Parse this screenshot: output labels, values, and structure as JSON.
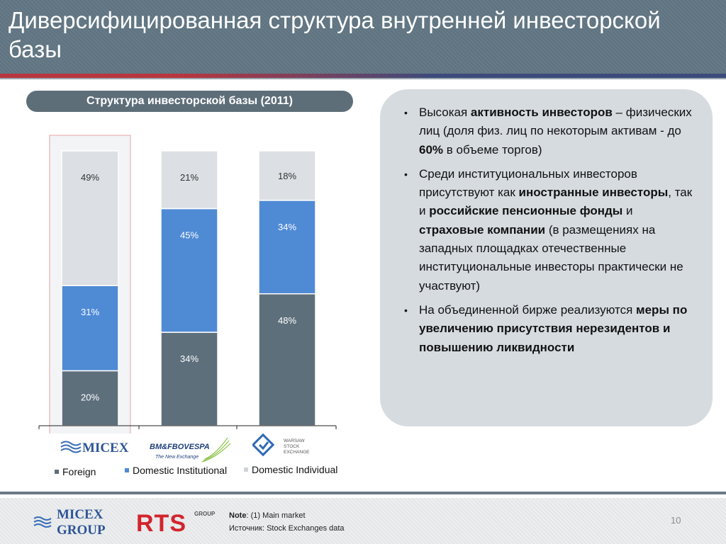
{
  "header": {
    "title": "Диверсифицированная структура внутренней инвесторской базы"
  },
  "chart_title": "Структура инвесторской базы (2011)",
  "chart_data": {
    "type": "bar",
    "stacked": true,
    "percent": true,
    "categories": [
      "MICEX",
      "BM&FBOVESPA",
      "Warsaw Stock Exchange"
    ],
    "series": [
      {
        "name": "Foreign",
        "values": [
          20,
          34,
          48
        ],
        "color": "#5e6f7c",
        "labels": [
          "20%",
          "34%",
          "48%"
        ]
      },
      {
        "name": "Domestic Institutional",
        "values": [
          31,
          45,
          34
        ],
        "color": "#4f8ad4",
        "labels": [
          "31%",
          "45%",
          "34%"
        ]
      },
      {
        "name": "Domestic Individual",
        "values": [
          49,
          21,
          18
        ],
        "color": "#dcdfe3",
        "labels": [
          "49%",
          "21%",
          "18%"
        ]
      }
    ],
    "ylim": [
      0,
      100
    ],
    "highlighted_category": "MICEX",
    "legend_position": "bottom"
  },
  "logos": {
    "micex": "MICEX",
    "bmf_name": "BM&FBOVESPA",
    "bmf_tagline": "The New Exchange",
    "wse_line1": "WARSAW",
    "wse_line2": "STOCK",
    "wse_line3": "EXCHANGE"
  },
  "legend": {
    "foreign": "Foreign",
    "domestic_institutional": "Domestic Institutional",
    "domestic_individual": "Domestic Individual"
  },
  "bullets": {
    "b1": {
      "t1": "Высокая ",
      "t2": "активность инвесторов",
      "t3": " – физических лиц (доля физ. лиц по некоторым активам - до ",
      "t4": "60%",
      "t5": " в объеме торгов)"
    },
    "b2": {
      "t1": "Среди институциональных инвесторов присутствуют как ",
      "t2": "иностранные инвесторы",
      "t3": ", так и ",
      "t4": "российские пенсионные фонды",
      "t5": " и ",
      "t6": "страховые компании",
      "t7": " (в размещениях на западных площадках отечественные институциональные инвесторы практически не участвуют)"
    },
    "b3": {
      "t1": "На объединенной бирже реализуются ",
      "t2": "меры по увеличению присутствия нерезидентов и повышению ликвидности"
    }
  },
  "footer": {
    "micex_group_line1": "MICEX",
    "micex_group_line2": "GROUP",
    "rts": "RTS",
    "rts_group": "GROUP",
    "note_label": "Note",
    "note_text": ": (1) Main market",
    "source": "Источник: Stock Exchanges data",
    "page_number": "10"
  },
  "colors": {
    "foreign": "#5e6f7c",
    "domestic_institutional": "#4f8ad4",
    "domestic_individual": "#dcdfe3",
    "highlight_border": "#e8a4a4",
    "highlight_fill": "#f2f4f6"
  }
}
